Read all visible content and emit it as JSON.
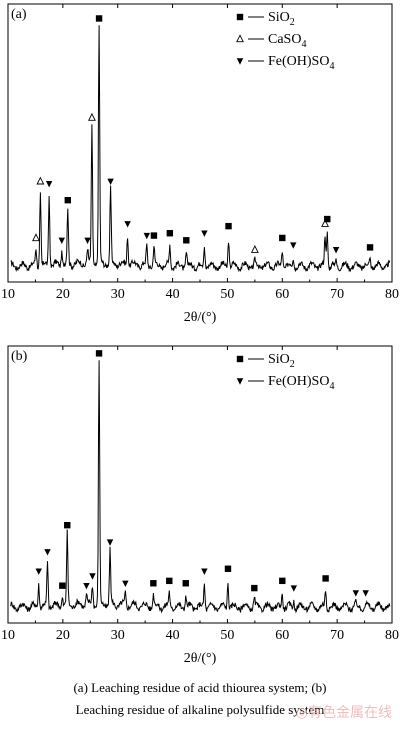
{
  "caption": {
    "line1": "(a) Leaching residue of acid thiourea system; (b)",
    "line2": "Leaching residue of alkaline polysulfide system"
  },
  "watermark": "◎有色金属在线",
  "colors": {
    "line": "#000000",
    "background": "#ffffff",
    "watermark": "#e8b4b4"
  },
  "chart_data": [
    {
      "type": "line",
      "panel_label": "(a)",
      "xlabel": "2θ/(°)",
      "ylabel": "",
      "xlim": [
        10,
        80
      ],
      "xticks": [
        10,
        20,
        30,
        40,
        50,
        60,
        70,
        80
      ],
      "grid": false,
      "legend_position": "top-right",
      "legend": [
        {
          "symbol": "square-filled",
          "label": "SiO2",
          "sub": "2",
          "base": "SiO"
        },
        {
          "symbol": "triangle-open",
          "label": "CaSO4",
          "sub": "4",
          "base": "CaSO"
        },
        {
          "symbol": "triangle-down-filled",
          "label": "Fe(OH)SO4",
          "sub": "4",
          "base": "Fe(OH)SO"
        }
      ],
      "peaks": [
        {
          "x": 15.1,
          "h": 0.07,
          "marker": "triangle-open"
        },
        {
          "x": 15.9,
          "h": 0.31,
          "marker": "triangle-open"
        },
        {
          "x": 17.5,
          "h": 0.3,
          "marker": "triangle-down-filled"
        },
        {
          "x": 19.8,
          "h": 0.06,
          "marker": "triangle-down-filled"
        },
        {
          "x": 20.9,
          "h": 0.23,
          "marker": "square-filled"
        },
        {
          "x": 24.5,
          "h": 0.06,
          "marker": "triangle-down-filled"
        },
        {
          "x": 25.3,
          "h": 0.58,
          "marker": "triangle-open"
        },
        {
          "x": 26.6,
          "h": 1.0,
          "marker": "square-filled"
        },
        {
          "x": 28.7,
          "h": 0.31,
          "marker": "triangle-down-filled"
        },
        {
          "x": 31.8,
          "h": 0.13,
          "marker": "triangle-down-filled"
        },
        {
          "x": 35.3,
          "h": 0.08,
          "marker": "triangle-down-filled"
        },
        {
          "x": 36.6,
          "h": 0.08,
          "marker": "square-filled"
        },
        {
          "x": 39.5,
          "h": 0.09,
          "marker": "square-filled"
        },
        {
          "x": 42.5,
          "h": 0.06,
          "marker": "square-filled"
        },
        {
          "x": 45.8,
          "h": 0.09,
          "marker": "triangle-down-filled"
        },
        {
          "x": 50.2,
          "h": 0.12,
          "marker": "square-filled"
        },
        {
          "x": 55.0,
          "h": 0.02,
          "marker": "triangle-open"
        },
        {
          "x": 60.0,
          "h": 0.07,
          "marker": "square-filled"
        },
        {
          "x": 62.0,
          "h": 0.04,
          "marker": "triangle-down-filled"
        },
        {
          "x": 67.8,
          "h": 0.13,
          "marker": "triangle-open"
        },
        {
          "x": 68.2,
          "h": 0.15,
          "marker": "square-filled"
        },
        {
          "x": 69.8,
          "h": 0.02,
          "marker": "triangle-down-filled"
        },
        {
          "x": 76.0,
          "h": 0.03,
          "marker": "square-filled"
        }
      ]
    },
    {
      "type": "line",
      "panel_label": "(b)",
      "xlabel": "2θ/(°)",
      "ylabel": "",
      "xlim": [
        10,
        80
      ],
      "xticks": [
        10,
        20,
        30,
        40,
        50,
        60,
        70,
        80
      ],
      "grid": false,
      "legend_position": "top-right",
      "legend": [
        {
          "symbol": "square-filled",
          "label": "SiO2",
          "sub": "2",
          "base": "SiO"
        },
        {
          "symbol": "triangle-down-filled",
          "label": "Fe(OH)SO4",
          "sub": "4",
          "base": "Fe(OH)SO"
        }
      ],
      "peaks": [
        {
          "x": 15.6,
          "h": 0.1,
          "marker": "triangle-down-filled"
        },
        {
          "x": 17.2,
          "h": 0.18,
          "marker": "triangle-down-filled"
        },
        {
          "x": 19.9,
          "h": 0.04,
          "marker": "square-filled"
        },
        {
          "x": 20.8,
          "h": 0.29,
          "marker": "square-filled"
        },
        {
          "x": 24.3,
          "h": 0.04,
          "marker": "triangle-down-filled"
        },
        {
          "x": 25.4,
          "h": 0.08,
          "marker": "triangle-down-filled"
        },
        {
          "x": 26.6,
          "h": 1.0,
          "marker": "square-filled"
        },
        {
          "x": 28.6,
          "h": 0.22,
          "marker": "triangle-down-filled"
        },
        {
          "x": 31.4,
          "h": 0.05,
          "marker": "triangle-down-filled"
        },
        {
          "x": 36.5,
          "h": 0.05,
          "marker": "square-filled"
        },
        {
          "x": 39.4,
          "h": 0.06,
          "marker": "square-filled"
        },
        {
          "x": 42.4,
          "h": 0.05,
          "marker": "square-filled"
        },
        {
          "x": 45.8,
          "h": 0.1,
          "marker": "triangle-down-filled"
        },
        {
          "x": 50.1,
          "h": 0.11,
          "marker": "square-filled"
        },
        {
          "x": 54.9,
          "h": 0.03,
          "marker": "square-filled"
        },
        {
          "x": 60.0,
          "h": 0.06,
          "marker": "square-filled"
        },
        {
          "x": 62.1,
          "h": 0.03,
          "marker": "triangle-down-filled"
        },
        {
          "x": 67.9,
          "h": 0.07,
          "marker": "square-filled"
        },
        {
          "x": 73.4,
          "h": 0.01,
          "marker": "triangle-down-filled"
        },
        {
          "x": 75.2,
          "h": 0.01,
          "marker": "triangle-down-filled"
        }
      ]
    }
  ]
}
